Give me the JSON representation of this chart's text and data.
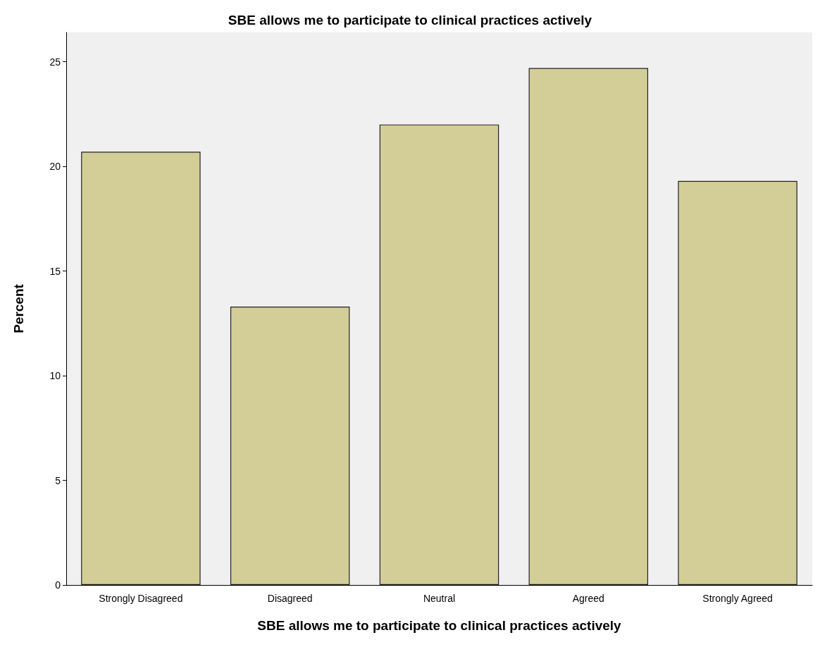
{
  "chart_data": {
    "type": "bar",
    "title": "SBE allows me to participate to clinical practices actively",
    "xlabel": "SBE allows me to participate to clinical practices actively",
    "ylabel": "Percent",
    "categories": [
      "Strongly Disagreed",
      "Disagreed",
      "Neutral",
      "Agreed",
      "Strongly Agreed"
    ],
    "values": [
      20.7,
      13.3,
      22.0,
      24.7,
      19.3
    ],
    "color": "#d3ce97",
    "ylim": [
      0,
      26.4
    ],
    "yticks": [
      0,
      5,
      10,
      15,
      20,
      25
    ],
    "grid": false
  }
}
